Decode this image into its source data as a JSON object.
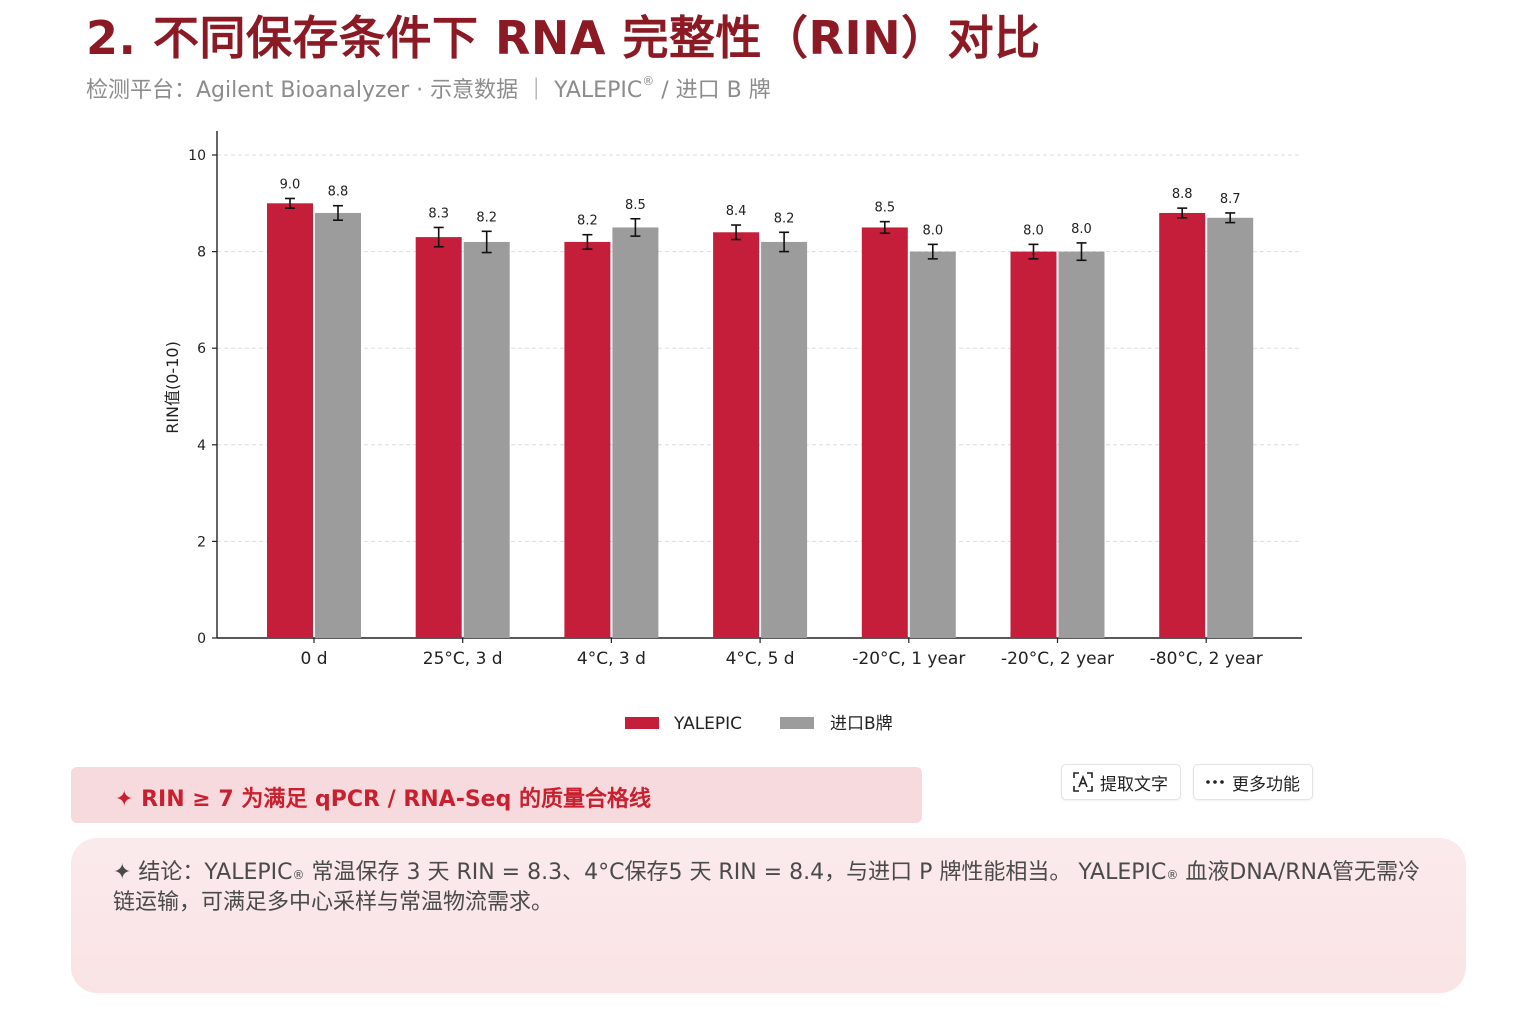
{
  "header": {
    "title": "2. 不同保存条件下 RNA 完整性（RIN）对比",
    "subtitle_prefix": "检测平台：Agilent Bioanalyzer · 示意数据 ｜ YALEPIC",
    "subtitle_reg": "®",
    "subtitle_suffix": " / 进口 B 牌"
  },
  "chart_data": {
    "type": "bar",
    "categories": [
      "0 d",
      "25°C, 3 d",
      "4°C, 3 d",
      "4°C, 5 d",
      "-20°C, 1 year",
      "-20°C, 2 year",
      "-80°C, 2 year"
    ],
    "series": [
      {
        "name": "YALEPIC",
        "values": [
          9.0,
          8.3,
          8.2,
          8.4,
          8.5,
          8.0,
          8.8
        ],
        "errors": [
          0.1,
          0.2,
          0.15,
          0.15,
          0.12,
          0.15,
          0.1
        ]
      },
      {
        "name": "进口B牌",
        "values": [
          8.8,
          8.2,
          8.5,
          8.2,
          8.0,
          8.0,
          8.7
        ],
        "errors": [
          0.15,
          0.22,
          0.18,
          0.2,
          0.15,
          0.18,
          0.1
        ]
      }
    ],
    "value_labels": [
      [
        "9.0",
        "8.3",
        "8.2",
        "8.4",
        "8.5",
        "8.0",
        "8.8"
      ],
      [
        "8.8",
        "8.2",
        "8.5",
        "8.2",
        "8.0",
        "8.0",
        "8.7"
      ]
    ],
    "ylabel": "RIN值(0-10)",
    "ylim": [
      0,
      10
    ],
    "yticks": [
      0,
      2,
      4,
      6,
      8,
      10
    ],
    "grid": "horizontal dashed",
    "legend_position": "bottom-center",
    "colors": {
      "YALEPIC": "#c41e3a",
      "进口B牌": "#9c9c9c"
    }
  },
  "note": {
    "text": "✦ RIN ≥ 7 为满足 qPCR / RNA-Seq 的质量合格线"
  },
  "toolbar": {
    "extract_text_label": "提取文字",
    "more_label": "更多功能"
  },
  "conclusion": {
    "part1": "✦ 结论：YALEPIC",
    "reg1": "®",
    "part2": " 常温保存 3 天 RIN = 8.3、4°C保存5 天 RIN = 8.4，与进口 P 牌性能相当。 YALEPIC",
    "reg2": "®",
    "part3": " 血液DNA/RNA管无需冷链运输，可满足多中心采样与常温物流需求。"
  }
}
